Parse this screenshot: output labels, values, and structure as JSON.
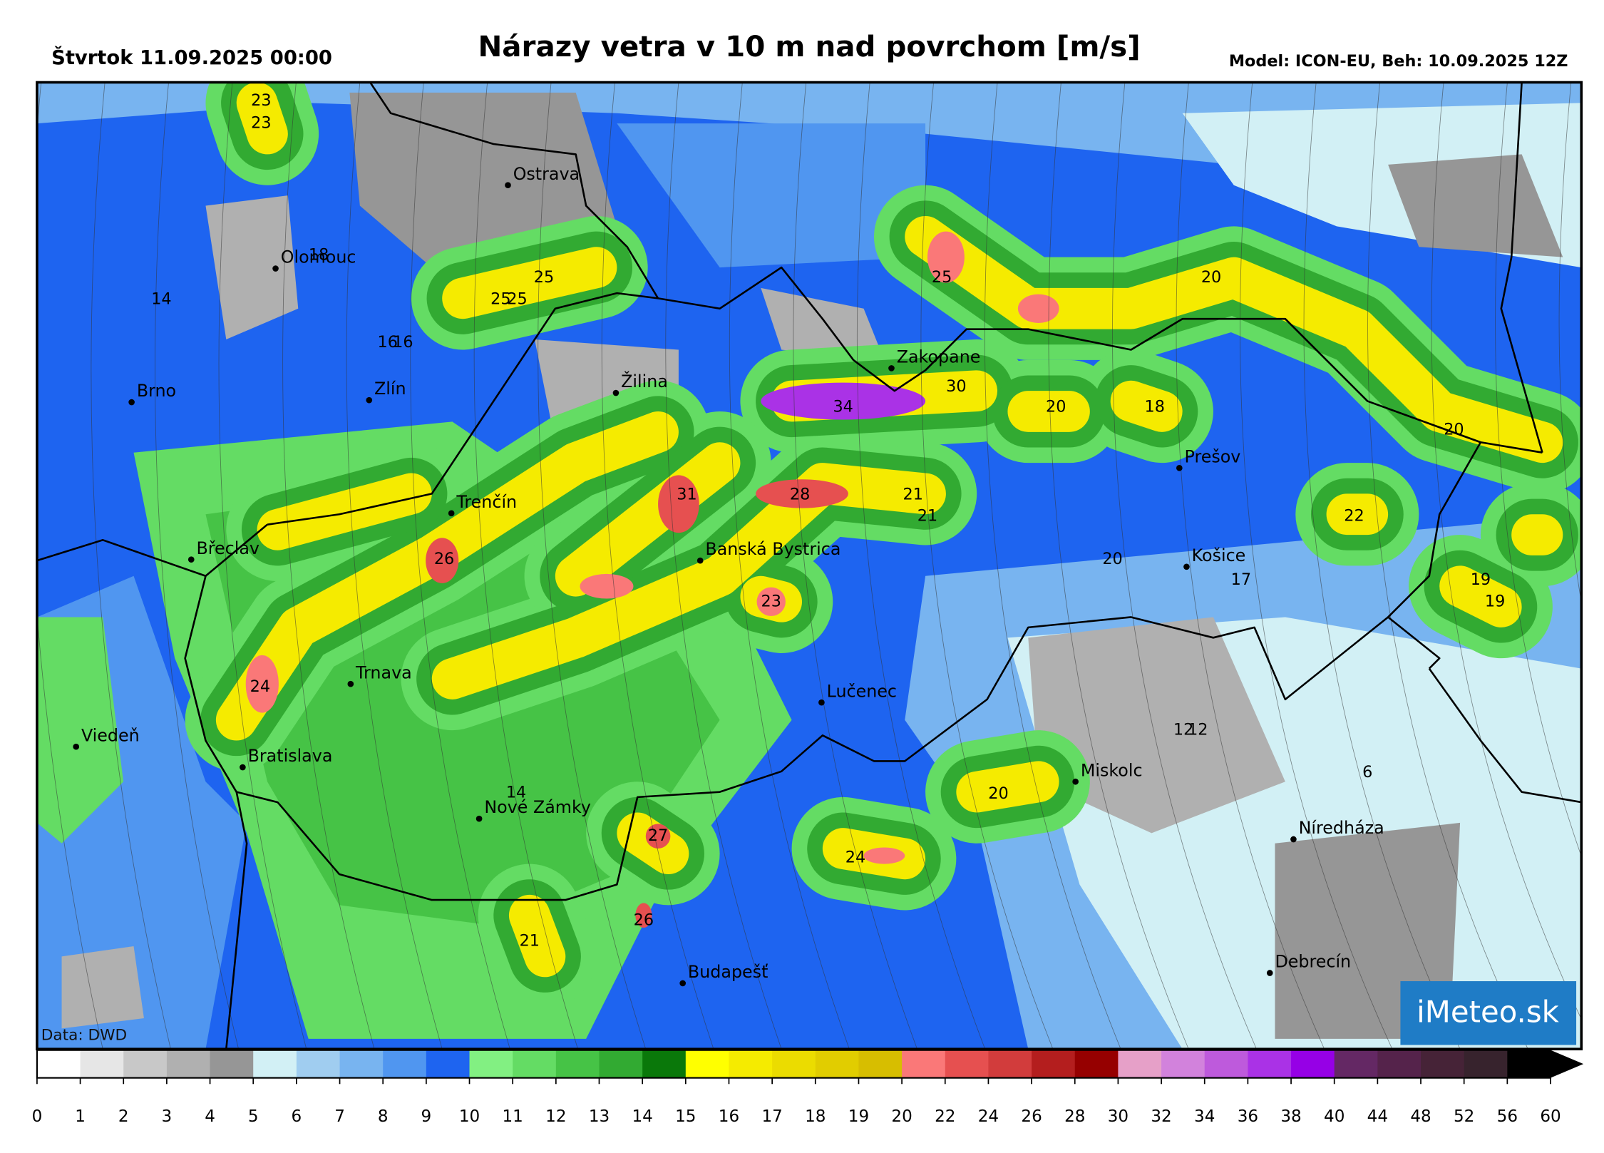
{
  "header": {
    "date": "Štvrtok 11.09.2025 00:00",
    "title": "Nárazy vetra v 10 m nad povrchom [m/s]",
    "model": "Model: ICON-EU, Beh: 10.09.2025 12Z"
  },
  "cities": [
    "Ostrava",
    "Olomouc",
    "Brno",
    "Zlín",
    "Žilina",
    "Zakopane",
    "Trenčín",
    "Břeclav",
    "Banská Bystrica",
    "Prešov",
    "Košice",
    "Trnava",
    "Lučenec",
    "Viedeň",
    "Bratislava",
    "Miskolc",
    "Nové Zámky",
    "Níredháza",
    "Budapešť",
    "Debrecín"
  ],
  "wind_labels": [
    23,
    23,
    18,
    14,
    25,
    25,
    25,
    16,
    16,
    34,
    30,
    25,
    20,
    20,
    18,
    20,
    31,
    28,
    21,
    21,
    22,
    26,
    20,
    17,
    19,
    19,
    23,
    24,
    12,
    12,
    6,
    20,
    14,
    27,
    24,
    26,
    21
  ],
  "credit": "Data: DWD",
  "logo": "iMeteo.sk",
  "colorbar": {
    "ticks": [
      0,
      1,
      2,
      3,
      4,
      5,
      6,
      7,
      8,
      9,
      10,
      11,
      12,
      13,
      14,
      15,
      16,
      17,
      18,
      19,
      20,
      22,
      24,
      26,
      28,
      30,
      32,
      34,
      36,
      38,
      40,
      44,
      48,
      52,
      56,
      60
    ],
    "colors": [
      "#ffffff",
      "#e6e6e6",
      "#c8c8c8",
      "#b0b0b0",
      "#969696",
      "#d2f0f5",
      "#a0cdf0",
      "#78b4f0",
      "#5096f0",
      "#1e64f0",
      "#82f082",
      "#64dc64",
      "#46c346",
      "#32aa32",
      "#0a780a",
      "#ffff00",
      "#f5eb00",
      "#ebdc00",
      "#e1cd00",
      "#d7be00",
      "#fa7878",
      "#e65050",
      "#d23c3c",
      "#b41e1e",
      "#960000",
      "#e6a0c8",
      "#d282dc",
      "#be5adc",
      "#aa32e6",
      "#9600e6",
      "#642864",
      "#55234b",
      "#462337",
      "#37232d",
      "#000000"
    ]
  }
}
